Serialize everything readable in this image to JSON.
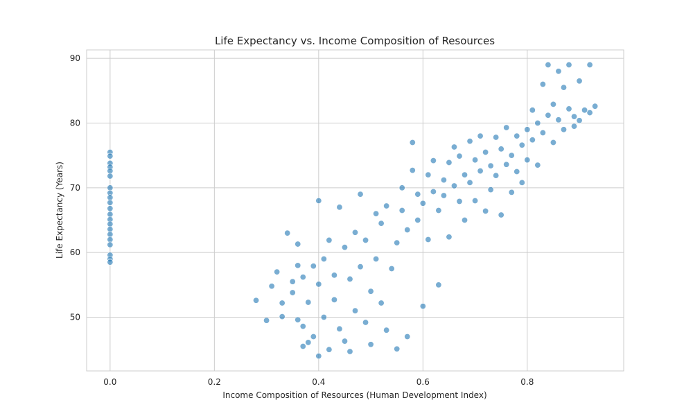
{
  "chart_data": {
    "type": "scatter",
    "title": "Life Expectancy vs. Income Composition of Resources",
    "xlabel": "Income Composition of Resources (Human Development Index)",
    "ylabel": "Life Expectancy (Years)",
    "xlim": [
      -0.045,
      0.985
    ],
    "ylim": [
      41.7,
      91.3
    ],
    "xticks": [
      0.0,
      0.2,
      0.4,
      0.6,
      0.8
    ],
    "xtick_labels": [
      "0.0",
      "0.2",
      "0.4",
      "0.6",
      "0.8"
    ],
    "yticks": [
      50,
      60,
      70,
      80,
      90
    ],
    "ytick_labels": [
      "50",
      "60",
      "70",
      "80",
      "90"
    ],
    "grid": true,
    "marker_color": "#1f77b4",
    "marker_edge_color": "#ffffff",
    "marker_alpha": 0.6,
    "series": [
      {
        "points": [
          [
            0.0,
            75.5
          ],
          [
            0.0,
            74.9
          ],
          [
            0.0,
            73.8
          ],
          [
            0.0,
            73.2
          ],
          [
            0.0,
            72.6
          ],
          [
            0.0,
            71.8
          ],
          [
            0.0,
            70.0
          ],
          [
            0.0,
            69.2
          ],
          [
            0.0,
            68.5
          ],
          [
            0.0,
            67.7
          ],
          [
            0.0,
            66.8
          ],
          [
            0.0,
            65.9
          ],
          [
            0.0,
            65.1
          ],
          [
            0.0,
            64.4
          ],
          [
            0.0,
            63.6
          ],
          [
            0.0,
            62.8
          ],
          [
            0.0,
            62.0
          ],
          [
            0.0,
            61.2
          ],
          [
            0.0,
            59.6
          ],
          [
            0.0,
            59.0
          ],
          [
            0.0,
            58.5
          ],
          [
            0.28,
            52.6
          ],
          [
            0.3,
            49.5
          ],
          [
            0.31,
            54.8
          ],
          [
            0.32,
            57.0
          ],
          [
            0.33,
            52.2
          ],
          [
            0.33,
            50.1
          ],
          [
            0.34,
            63.0
          ],
          [
            0.35,
            55.5
          ],
          [
            0.35,
            53.8
          ],
          [
            0.36,
            49.6
          ],
          [
            0.36,
            61.3
          ],
          [
            0.36,
            58.0
          ],
          [
            0.37,
            56.2
          ],
          [
            0.37,
            45.5
          ],
          [
            0.37,
            48.6
          ],
          [
            0.38,
            52.3
          ],
          [
            0.38,
            46.1
          ],
          [
            0.39,
            57.9
          ],
          [
            0.39,
            47.0
          ],
          [
            0.4,
            55.1
          ],
          [
            0.4,
            44.0
          ],
          [
            0.4,
            68.0
          ],
          [
            0.41,
            59.0
          ],
          [
            0.41,
            50.0
          ],
          [
            0.42,
            61.9
          ],
          [
            0.42,
            45.0
          ],
          [
            0.43,
            56.5
          ],
          [
            0.43,
            52.7
          ],
          [
            0.44,
            48.2
          ],
          [
            0.44,
            67.0
          ],
          [
            0.45,
            46.3
          ],
          [
            0.45,
            60.8
          ],
          [
            0.46,
            55.9
          ],
          [
            0.46,
            44.7
          ],
          [
            0.47,
            63.1
          ],
          [
            0.47,
            51.0
          ],
          [
            0.48,
            57.8
          ],
          [
            0.48,
            69.0
          ],
          [
            0.49,
            49.2
          ],
          [
            0.49,
            61.9
          ],
          [
            0.5,
            54.0
          ],
          [
            0.5,
            45.8
          ],
          [
            0.51,
            66.0
          ],
          [
            0.51,
            59.0
          ],
          [
            0.52,
            52.2
          ],
          [
            0.52,
            64.5
          ],
          [
            0.53,
            48.0
          ],
          [
            0.53,
            67.2
          ],
          [
            0.54,
            57.5
          ],
          [
            0.55,
            61.5
          ],
          [
            0.55,
            45.1
          ],
          [
            0.56,
            70.0
          ],
          [
            0.56,
            66.5
          ],
          [
            0.57,
            63.5
          ],
          [
            0.57,
            47.0
          ],
          [
            0.58,
            77.0
          ],
          [
            0.58,
            72.7
          ],
          [
            0.59,
            69.0
          ],
          [
            0.59,
            65.0
          ],
          [
            0.6,
            67.6
          ],
          [
            0.6,
            51.7
          ],
          [
            0.61,
            72.0
          ],
          [
            0.61,
            62.0
          ],
          [
            0.62,
            74.2
          ],
          [
            0.62,
            69.4
          ],
          [
            0.63,
            66.5
          ],
          [
            0.63,
            55.0
          ],
          [
            0.64,
            71.2
          ],
          [
            0.64,
            68.8
          ],
          [
            0.65,
            73.9
          ],
          [
            0.65,
            62.4
          ],
          [
            0.66,
            76.3
          ],
          [
            0.66,
            70.3
          ],
          [
            0.67,
            67.9
          ],
          [
            0.67,
            74.9
          ],
          [
            0.68,
            72.0
          ],
          [
            0.68,
            65.0
          ],
          [
            0.69,
            77.2
          ],
          [
            0.69,
            70.8
          ],
          [
            0.7,
            74.3
          ],
          [
            0.7,
            68.0
          ],
          [
            0.71,
            78.0
          ],
          [
            0.71,
            72.6
          ],
          [
            0.72,
            75.5
          ],
          [
            0.72,
            66.4
          ],
          [
            0.73,
            73.4
          ],
          [
            0.73,
            69.7
          ],
          [
            0.74,
            77.8
          ],
          [
            0.74,
            71.9
          ],
          [
            0.75,
            76.0
          ],
          [
            0.75,
            65.8
          ],
          [
            0.76,
            79.3
          ],
          [
            0.76,
            73.6
          ],
          [
            0.77,
            75.0
          ],
          [
            0.77,
            69.3
          ],
          [
            0.78,
            78.0
          ],
          [
            0.78,
            72.5
          ],
          [
            0.79,
            76.6
          ],
          [
            0.79,
            70.8
          ],
          [
            0.8,
            79.0
          ],
          [
            0.8,
            74.3
          ],
          [
            0.81,
            82.0
          ],
          [
            0.81,
            77.4
          ],
          [
            0.82,
            80.0
          ],
          [
            0.82,
            73.5
          ],
          [
            0.83,
            86.0
          ],
          [
            0.83,
            78.5
          ],
          [
            0.84,
            89.0
          ],
          [
            0.84,
            81.2
          ],
          [
            0.85,
            82.9
          ],
          [
            0.85,
            77.0
          ],
          [
            0.86,
            88.0
          ],
          [
            0.86,
            80.5
          ],
          [
            0.87,
            85.5
          ],
          [
            0.87,
            79.0
          ],
          [
            0.88,
            89.0
          ],
          [
            0.88,
            82.2
          ],
          [
            0.89,
            81.0
          ],
          [
            0.89,
            79.5
          ],
          [
            0.9,
            86.5
          ],
          [
            0.9,
            80.4
          ],
          [
            0.91,
            82.0
          ],
          [
            0.92,
            89.0
          ],
          [
            0.92,
            81.6
          ],
          [
            0.93,
            82.6
          ]
        ]
      }
    ]
  }
}
